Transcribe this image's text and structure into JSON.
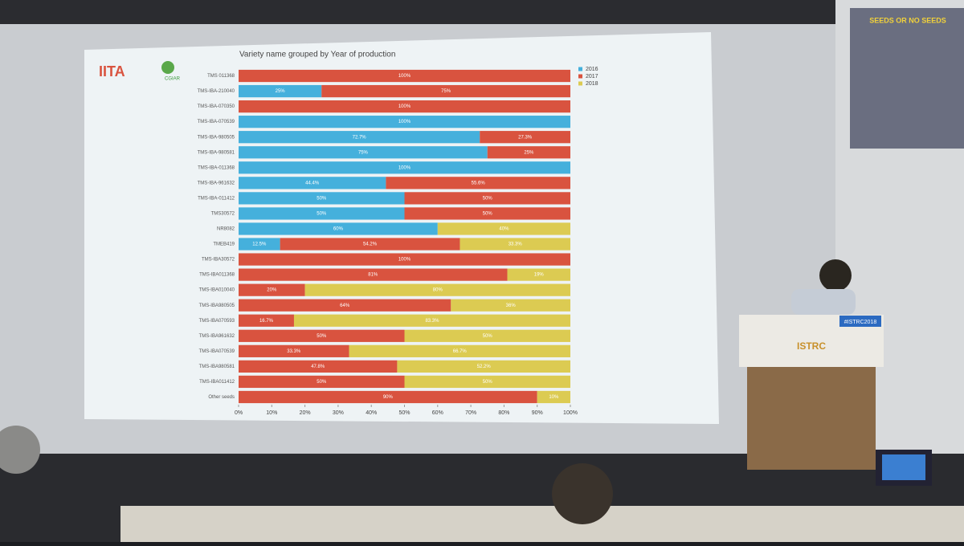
{
  "chart_data": {
    "type": "stacked-bar-horizontal",
    "title": "Variety name grouped by Year of production",
    "categories": [
      "TMS 011368",
      "TMS-IBA-210040",
      "TMS-IBA-070350",
      "TMS-IBA-070539",
      "TMS-IBA-980505",
      "TMS-IBA-980581",
      "TMS-IBA-011368",
      "TMS-IBA-961632",
      "TMS-IBA-011412",
      "TMS30572",
      "NR8082",
      "TMEB419",
      "TMS-IBA30572",
      "TMS-IBA011368",
      "TMS-IBA010040",
      "TMS-IBA980505",
      "TMS-IBA070593",
      "TMS-IBA961632",
      "TMS-IBA070539",
      "TMS-IBA980581",
      "TMS-IBA011412",
      "Other seeds"
    ],
    "series": [
      {
        "name": "2016",
        "color": "#45b0dc",
        "values": [
          null,
          25,
          null,
          100,
          72.7,
          75,
          100,
          44.4,
          50,
          50,
          60,
          12.5,
          null,
          null,
          null,
          null,
          null,
          null,
          null,
          null,
          null,
          null
        ],
        "value_labels": [
          null,
          "25%",
          null,
          "100%",
          "72.7%",
          "75%",
          "100%",
          "44.4%",
          "50%",
          "50%",
          "60%",
          "12.5%",
          null,
          null,
          null,
          null,
          null,
          null,
          null,
          null,
          null,
          null
        ]
      },
      {
        "name": "2017",
        "color": "#d9533f",
        "values": [
          100,
          75,
          100,
          null,
          27.3,
          25,
          null,
          55.6,
          50,
          50,
          null,
          54.2,
          100,
          81,
          20,
          64,
          16.7,
          50,
          33.3,
          47.8,
          50,
          90
        ],
        "value_labels": [
          "100%",
          "75%",
          "100%",
          null,
          "27.3%",
          "25%",
          null,
          "55.6%",
          "50%",
          "50%",
          null,
          "54.2%",
          "100%",
          "81%",
          "20%",
          "64%",
          "16.7%",
          "50%",
          "33.3%",
          "47.8%",
          "50%",
          "90%"
        ]
      },
      {
        "name": "2018",
        "color": "#dccb52",
        "values": [
          null,
          null,
          null,
          null,
          null,
          null,
          null,
          null,
          null,
          null,
          40,
          33.3,
          null,
          19,
          80,
          36,
          83.3,
          50,
          66.7,
          52.2,
          50,
          10
        ],
        "value_labels": [
          null,
          null,
          null,
          null,
          null,
          null,
          null,
          null,
          null,
          null,
          "40%",
          "33.3%",
          null,
          "19%",
          "80%",
          "36%",
          "83.3%",
          "50%",
          "66.7%",
          "52.2%",
          "50%",
          "10%"
        ]
      }
    ],
    "xlim": [
      0,
      100
    ],
    "xticks": [
      {
        "value": 0,
        "label": "0%"
      },
      {
        "value": 10,
        "label": "10%"
      },
      {
        "value": 20,
        "label": "20%"
      },
      {
        "value": 30,
        "label": "30%"
      },
      {
        "value": 40,
        "label": "40%"
      },
      {
        "value": 50,
        "label": "50%"
      },
      {
        "value": 60,
        "label": "60%"
      },
      {
        "value": 70,
        "label": "70%"
      },
      {
        "value": 80,
        "label": "80%"
      },
      {
        "value": 90,
        "label": "90%"
      },
      {
        "value": 100,
        "label": "100%"
      }
    ],
    "legend": "top-right"
  },
  "slide": {
    "logo": "IITA",
    "logo2": "CGIAR"
  },
  "side_screen": {
    "title": "SEEDS OR NO SEEDS"
  },
  "podium": {
    "hashtag": "#ISTRC2018",
    "banner": "ISTRC"
  }
}
